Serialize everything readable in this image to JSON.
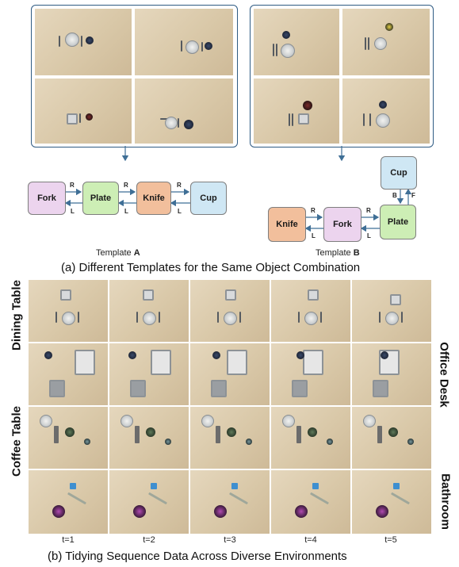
{
  "figure": {
    "template_a": {
      "label_prefix": "Template",
      "label_letter": "A"
    },
    "template_b": {
      "label_prefix": "Template",
      "label_letter": "B"
    },
    "caption_a": "(a) Different Templates for the Same Object Combination",
    "caption_b": "(b) Tidying Sequence Data Across Diverse Environments",
    "nodes_a": [
      "Fork",
      "Plate",
      "Knife",
      "Cup"
    ],
    "nodes_b": [
      "Cup",
      "Knife",
      "Fork",
      "Plate"
    ],
    "edge_labels": {
      "r": "R",
      "l": "L",
      "b": "B",
      "f": "F"
    },
    "row_labels_left": [
      "Dining Table",
      "Coffee Table"
    ],
    "row_labels_right": [
      "Office Desk",
      "Bathroom"
    ],
    "time_steps": [
      "t=1",
      "t=2",
      "t=3",
      "t=4",
      "t=5"
    ]
  },
  "colors": {
    "panel_border": "#2f5b83",
    "fork": "#ecd4ee",
    "plate": "#cdeeb5",
    "knife": "#f2bf9c",
    "cup": "#cfe7f4",
    "arrow": "#3f6f96"
  }
}
